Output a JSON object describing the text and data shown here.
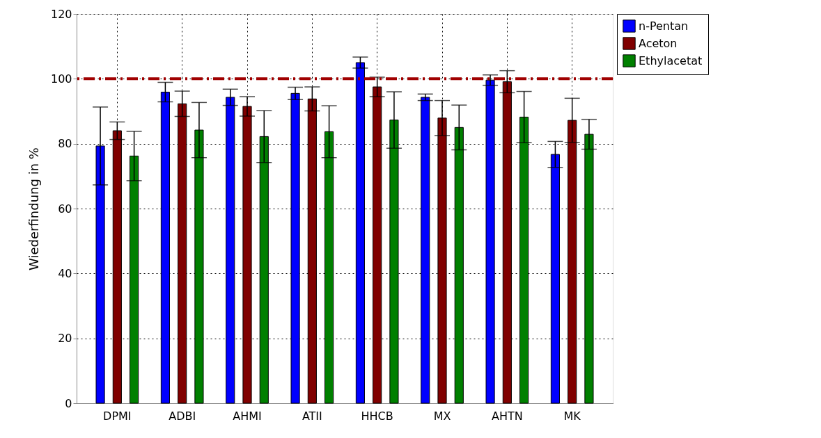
{
  "chart_data": {
    "type": "bar",
    "ylabel": "Wiederfindung in %",
    "categories": [
      "DPMI",
      "ADBI",
      "AHMI",
      "ATII",
      "HHCB",
      "MX",
      "AHTN",
      "MK"
    ],
    "series": [
      {
        "name": "n-Pentan",
        "color": "#0000ff",
        "values": [
          79.3,
          95.9,
          94.3,
          95.5,
          105.0,
          94.3,
          99.6,
          76.7
        ],
        "errors": [
          12.0,
          3.0,
          2.5,
          1.9,
          1.7,
          1.0,
          1.6,
          4.0
        ]
      },
      {
        "name": "Aceton",
        "color": "#800000",
        "values": [
          84.0,
          92.3,
          91.5,
          93.8,
          97.5,
          87.9,
          99.1,
          87.2
        ],
        "errors": [
          2.7,
          3.9,
          3.0,
          3.7,
          3.0,
          5.4,
          3.4,
          6.8
        ]
      },
      {
        "name": "Ethylacetat",
        "color": "#008000",
        "values": [
          76.2,
          84.2,
          82.2,
          83.7,
          87.3,
          85.0,
          88.2,
          82.9
        ],
        "errors": [
          7.6,
          8.5,
          8.0,
          8.0,
          8.7,
          6.9,
          7.9,
          4.6
        ]
      }
    ],
    "ylim": [
      0,
      120
    ],
    "yticks": [
      0,
      20,
      40,
      60,
      80,
      100,
      120
    ],
    "ref_lines": [
      {
        "axis": "y",
        "value": 100,
        "color": "#a00000",
        "line_style": "dashed"
      }
    ],
    "grid": true,
    "legend": "top right"
  }
}
